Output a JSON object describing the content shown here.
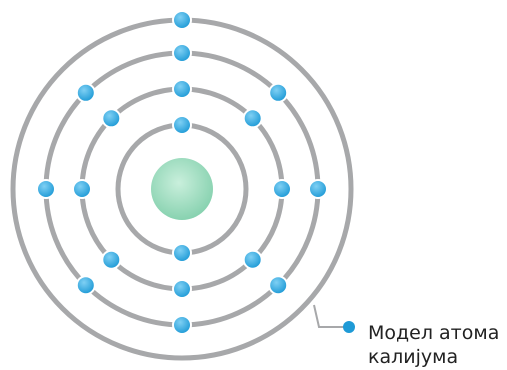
{
  "caption": {
    "line1": "Модел атома",
    "line2": "калијума"
  },
  "atom": {
    "element": "калијум",
    "shell_electrons": [
      2,
      8,
      8,
      1
    ]
  },
  "colors": {
    "orbit": "#a7a8aa",
    "electron": "#1e9ad6",
    "electron_highlight": "#7fd0f4",
    "nucleus": "#88d2b0",
    "nucleus_highlight": "#c9efdc",
    "leader": "#a7a8aa"
  }
}
